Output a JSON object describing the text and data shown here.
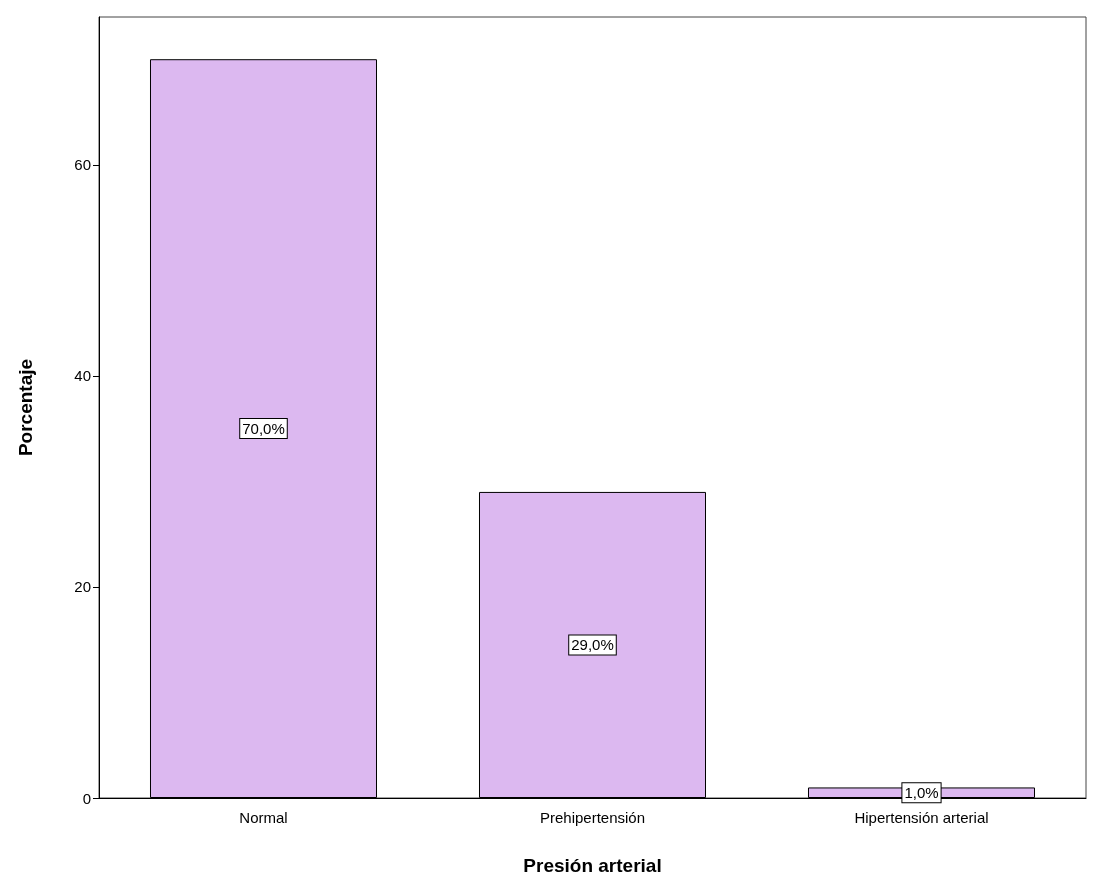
{
  "chart_data": {
    "type": "bar",
    "xlabel": "Presión arterial",
    "ylabel": "Porcentaje",
    "categories": [
      "Normal",
      "Prehipertensión",
      "Hipertensión arterial"
    ],
    "values": [
      70,
      29,
      1
    ],
    "value_labels": [
      "70,0%",
      "29,0%",
      "1,0%"
    ],
    "color": "#dcb8f0",
    "ylim": [
      0,
      74
    ],
    "yticks": [
      0,
      20,
      40,
      60
    ],
    "grid": false
  }
}
